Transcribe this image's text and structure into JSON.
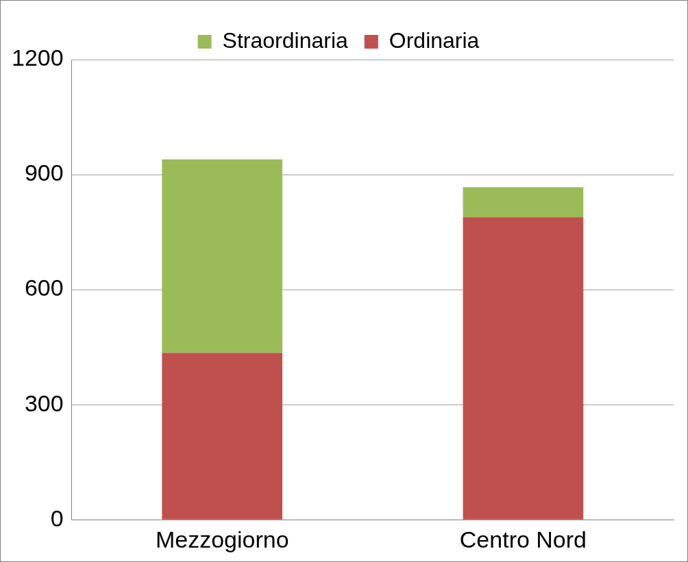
{
  "chart_data": {
    "type": "bar",
    "stacked": true,
    "categories": [
      "Mezzogiorno",
      "Centro Nord"
    ],
    "series": [
      {
        "name": "Ordinaria",
        "color": "#c0504d",
        "values": [
          435,
          789
        ]
      },
      {
        "name": "Straordinaria",
        "color": "#9bbb59",
        "values": [
          505,
          78
        ]
      }
    ],
    "ylim": [
      0,
      1200
    ],
    "yticks": [
      0,
      300,
      600,
      900,
      1200
    ],
    "grid": true,
    "legend": "top"
  }
}
